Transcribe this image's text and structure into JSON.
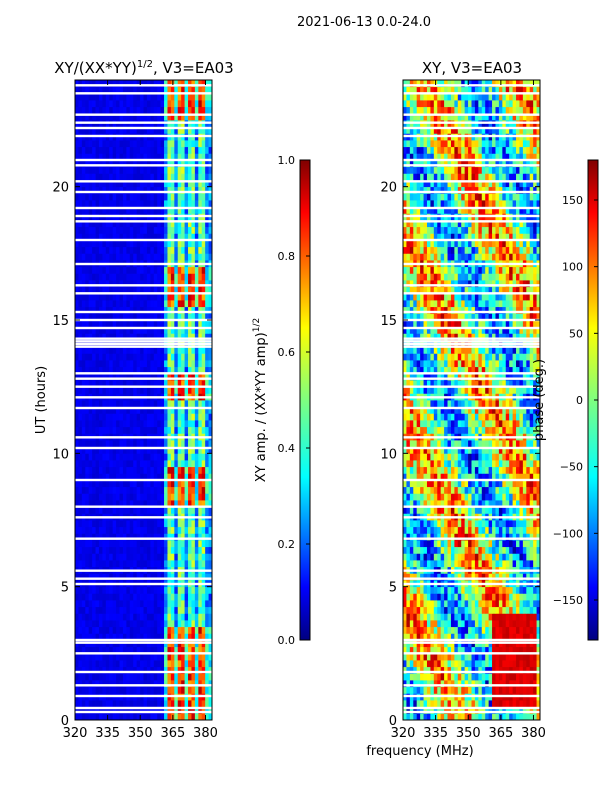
{
  "suptitle": "2021-06-13 0.0-24.0",
  "chart_data": [
    {
      "type": "heatmap",
      "title_main": "XY/(XX*YY)",
      "title_exp": "1/2",
      "title_tail": ", V3=EA03",
      "ylabel": "UT (hours)",
      "xlabel": "",
      "xlim": [
        320,
        383
      ],
      "ylim": [
        0,
        24
      ],
      "xticks": [
        320,
        335,
        350,
        365,
        380
      ],
      "yticks": [
        0,
        5,
        10,
        15,
        20
      ],
      "colorbar": {
        "label_main": "XY amp. / (XX*YY amp)",
        "label_exp": "1/2",
        "range": [
          0.0,
          1.0
        ],
        "ticks": [
          {
            "v": 0.0,
            "label": "0.0"
          },
          {
            "v": 0.2,
            "label": "0.2"
          },
          {
            "v": 0.4,
            "label": "0.4"
          },
          {
            "v": 0.6,
            "label": "0.6"
          },
          {
            "v": 0.8,
            "label": "0.8"
          },
          {
            "v": 1.0,
            "label": "1.0"
          }
        ]
      },
      "flagged_times": [
        0.3,
        0.45,
        0.9,
        1.3,
        1.8,
        2.5,
        2.9,
        3.0,
        5.1,
        5.3,
        5.6,
        6.8,
        7.6,
        8.0,
        9.0,
        10.2,
        10.6,
        11.7,
        12.1,
        12.5,
        12.8,
        13.0,
        14.0,
        14.1,
        14.2,
        14.3,
        14.7,
        15.0,
        15.3,
        16.0,
        16.3,
        17.1,
        18.0,
        18.7,
        18.9,
        19.2,
        19.8,
        20.2,
        20.8,
        21.0,
        21.9,
        22.2,
        22.4,
        22.7,
        23.5,
        23.8
      ],
      "active_band_mhz": [
        360,
        383
      ],
      "active_columns_mhz": [
        363.5,
        368.5,
        373.5,
        378.5
      ],
      "high_amp_hours": [
        [
          0.0,
          3.5
        ],
        [
          8.0,
          9.5
        ],
        [
          12.0,
          13.0
        ],
        [
          15.5,
          17.0
        ],
        [
          22.5,
          24.0
        ]
      ]
    },
    {
      "type": "heatmap",
      "title_main": "XY, V3=EA03",
      "ylabel": "",
      "xlabel": "frequency (MHz)",
      "xlim": [
        320,
        383
      ],
      "ylim": [
        0,
        24
      ],
      "xticks": [
        320,
        335,
        350,
        365,
        380
      ],
      "yticks": [
        0,
        5,
        10,
        15,
        20
      ],
      "colorbar": {
        "label": "phase (deg.)",
        "range": [
          -180,
          180
        ],
        "ticks": [
          {
            "v": 150,
            "label": "150"
          },
          {
            "v": 100,
            "label": "100"
          },
          {
            "v": 50,
            "label": "50"
          },
          {
            "v": 0,
            "label": "0"
          },
          {
            "v": -50,
            "label": "−50"
          },
          {
            "v": -100,
            "label": "−100"
          },
          {
            "v": -150,
            "label": "−150"
          }
        ]
      },
      "flagged_times": [
        0.3,
        0.45,
        0.9,
        1.3,
        1.8,
        2.5,
        2.9,
        3.0,
        5.1,
        5.3,
        5.6,
        6.8,
        7.6,
        8.0,
        9.0,
        10.2,
        10.6,
        11.7,
        12.1,
        12.5,
        12.8,
        13.0,
        14.0,
        14.1,
        14.2,
        14.3,
        14.7,
        15.0,
        15.3,
        16.0,
        16.3,
        17.1,
        18.0,
        18.7,
        18.9,
        19.2,
        19.8,
        20.2,
        20.8,
        21.0,
        21.9,
        22.2,
        22.4,
        22.7,
        23.5,
        23.8
      ],
      "red_block_mhz": [
        360,
        380
      ],
      "red_block_hours": [
        0.5,
        4.0
      ]
    }
  ]
}
